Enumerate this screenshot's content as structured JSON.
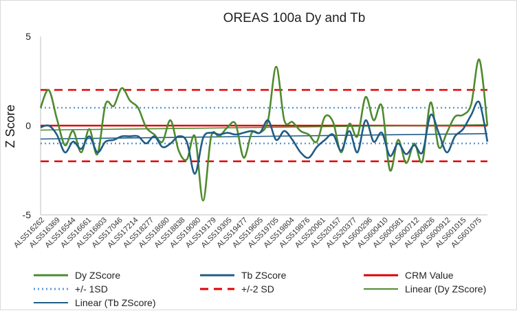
{
  "chart_data": {
    "type": "line",
    "title": "OREAS 100a Dy and Tb",
    "xlabel": "",
    "ylabel": "Z Score",
    "ylim": [
      -5,
      5
    ],
    "yticks": [
      5,
      0,
      -5
    ],
    "grid": false,
    "legend_position": "bottom",
    "x_labels": [
      "ALS516262",
      "ALS516369",
      "ALS516544",
      "ALS516661",
      "ALS516803",
      "ALS517046",
      "ALS517214",
      "ALS518277",
      "ALS518680",
      "ALS518838",
      "ALS519080",
      "ALS519179",
      "ALS519305",
      "ALS519477",
      "ALS519605",
      "ALS519705",
      "ALS519804",
      "ALS519876",
      "ALS520061",
      "ALS520157",
      "ALS520377",
      "ALS600296",
      "ALS600410",
      "ALS600581",
      "ALS600712",
      "ALS600826",
      "ALS600912",
      "ALS601015",
      "ALS601075"
    ],
    "series": [
      {
        "name": "Dy ZScore",
        "color": "#4e8a2e",
        "style": "solid",
        "values": [
          1.0,
          2.0,
          0.4,
          -1.1,
          -0.3,
          -1.5,
          -0.2,
          -1.6,
          1.2,
          1.1,
          2.1,
          1.4,
          1.0,
          -0.1,
          -0.5,
          -0.9,
          0.3,
          -1.4,
          -1.9,
          -0.6,
          -4.2,
          -0.6,
          -0.6,
          -0.1,
          0.1,
          -1.8,
          -0.4,
          -0.4,
          0.3,
          3.3,
          0.3,
          0.2,
          -0.3,
          -0.5,
          -0.9,
          0.5,
          0.2,
          -1.5,
          0.1,
          -0.6,
          1.6,
          0.3,
          1.1,
          -2.5,
          -0.8,
          -2.1,
          -1.0,
          -2.0,
          1.3,
          -1.2,
          -0.4,
          0.5,
          0.6,
          1.2,
          3.7,
          0.0
        ]
      },
      {
        "name": "Tb ZScore",
        "color": "#1f5c86",
        "style": "solid",
        "values": [
          -0.1,
          0.0,
          -0.5,
          -1.5,
          -0.9,
          -1.3,
          -0.6,
          -1.5,
          -0.9,
          -0.8,
          -0.6,
          -0.6,
          -0.6,
          -1.0,
          -0.6,
          -1.2,
          -1.0,
          -0.6,
          -0.9,
          -2.7,
          -0.7,
          -0.4,
          -0.5,
          -0.4,
          -0.5,
          -0.4,
          -0.3,
          -0.4,
          0.3,
          -0.8,
          -0.3,
          -0.8,
          -1.5,
          -1.8,
          -1.2,
          -0.8,
          -0.5,
          -1.4,
          -0.3,
          -1.5,
          0.3,
          -0.9,
          -0.4,
          -1.7,
          -1.0,
          -1.6,
          -1.1,
          -1.5,
          0.6,
          -0.4,
          -1.5,
          -0.6,
          -0.2,
          0.6,
          1.3,
          -0.9
        ]
      },
      {
        "name": "CRM Value",
        "color": "#e00000",
        "style": "solid",
        "constant": 0.0
      },
      {
        "name": "+/- 1SD",
        "color": "#5b9bd5",
        "style": "dotted",
        "constant": [
          1.0,
          -1.0
        ]
      },
      {
        "name": "+/-2 SD",
        "color": "#e00000",
        "style": "dashed",
        "constant": [
          2.0,
          -2.0
        ]
      },
      {
        "name": "Linear (Dy ZScore)",
        "color": "#4e8a2e",
        "style": "solid",
        "trend": [
          -0.25,
          0.05
        ]
      },
      {
        "name": "Linear (Tb ZScore)",
        "color": "#1f5c86",
        "style": "solid",
        "trend": [
          -0.75,
          -0.45
        ]
      }
    ]
  }
}
